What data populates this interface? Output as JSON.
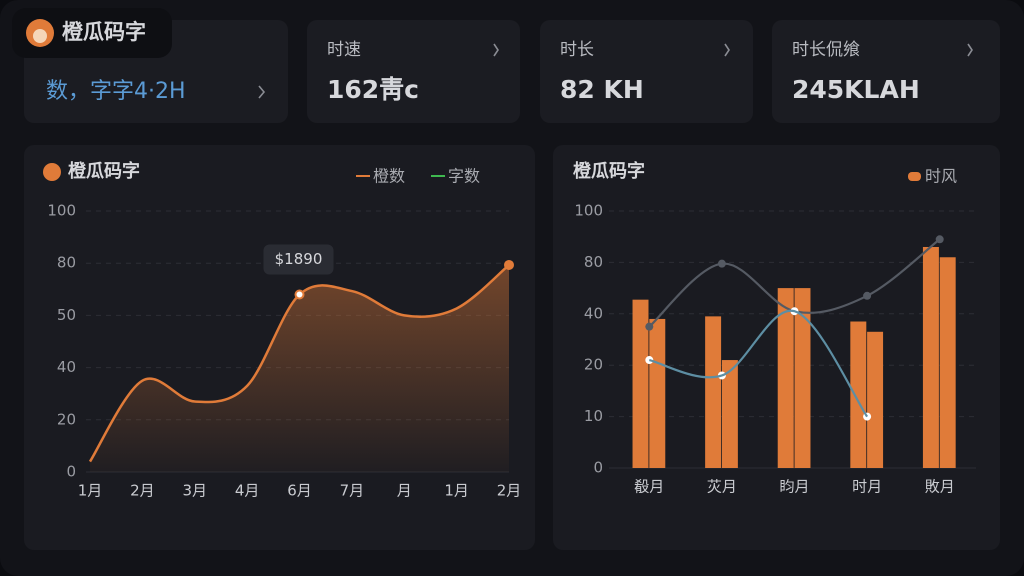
{
  "header": {
    "title": "橙瓜码字"
  },
  "cards": [
    {
      "value": "数，字字4·2H"
    },
    {
      "label": "时速",
      "value": "162靑c"
    },
    {
      "label": "时长",
      "value": "82 KH"
    },
    {
      "label": "时长侃飨",
      "value": "245KLAH"
    }
  ],
  "charts": [
    {
      "type": "line",
      "title": "橙瓜码字",
      "legend": [
        {
          "name": "橙数",
          "color": "#e07b39"
        },
        {
          "name": "字数",
          "color": "#3fb950"
        }
      ],
      "categories": [
        "1月",
        "2月",
        "3月",
        "4月",
        "6月",
        "7月",
        "月",
        "1月",
        "2月"
      ],
      "series": [
        {
          "name": "橙数",
          "color": "#e07b39",
          "values": [
            4,
            35,
            27,
            33,
            62,
            64,
            50,
            54,
            79
          ]
        }
      ],
      "yticks": [
        0,
        20,
        40,
        50,
        80,
        100
      ],
      "annotations": [
        {
          "text": "$1890",
          "x": "6月"
        }
      ]
    },
    {
      "type": "bar",
      "title": "橙瓜码字",
      "legend": [
        {
          "name": "时风",
          "color": "#e07b39"
        }
      ],
      "categories": [
        "殽月",
        "苂月",
        "盷月",
        "时月",
        "敗月"
      ],
      "series": [
        {
          "color": "#e07b39",
          "values": [
            51,
            39,
            60,
            37,
            86
          ]
        },
        {
          "color": "#e07b39",
          "values": [
            38,
            22,
            60,
            33,
            82
          ]
        }
      ],
      "lines": [
        {
          "color": "#555a63",
          "values": [
            35,
            79,
            42,
            54,
            89
          ]
        },
        {
          "color": "#5d8ea3",
          "values": [
            22,
            18,
            42,
            10,
            null
          ]
        }
      ],
      "yticks": [
        0,
        10,
        20,
        40,
        80,
        100
      ]
    }
  ]
}
